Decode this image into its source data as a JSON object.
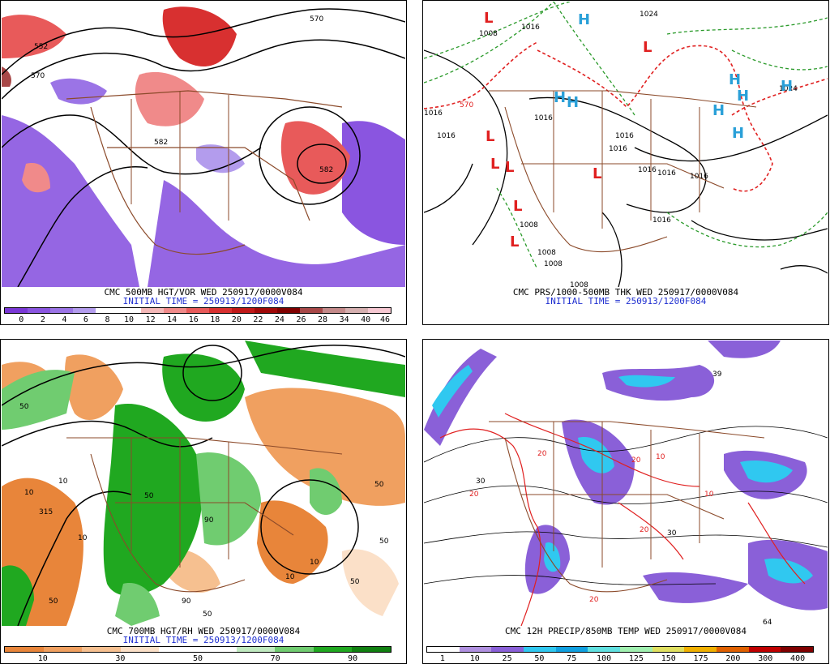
{
  "panels": [
    {
      "title": "CMC 500MB HGT/VOR WED 250917/0000V084",
      "initial_time": "INITIAL TIME = 250913/1200F084",
      "legend": {
        "colors": [
          "#7a38d6",
          "#8a55e0",
          "#9b74e6",
          "#b39ced",
          "#ffffff",
          "#ffffff",
          "#f4b8b8",
          "#f08a8a",
          "#e85a5a",
          "#d83030",
          "#c01818",
          "#a00808",
          "#800000",
          "#a84848",
          "#c48a8a",
          "#d6b0b0",
          "#f6c8d2"
        ],
        "labels": [
          "0",
          "2",
          "4",
          "6",
          "8",
          "10",
          "12",
          "14",
          "16",
          "18",
          "20",
          "22",
          "24",
          "26",
          "28",
          "34",
          "40",
          "46"
        ]
      },
      "contour_labels": [
        "570",
        "582",
        "570",
        "552",
        "582"
      ]
    },
    {
      "title": "CMC PRS/1000-500MB THK WED 250917/0000V084",
      "initial_time": "INITIAL TIME = 250913/1200F084",
      "pressure_labels": [
        "1008",
        "1016",
        "1024",
        "1016",
        "1016",
        "1016",
        "1016",
        "1016",
        "1016",
        "1016",
        "1016",
        "1016",
        "1008",
        "1008",
        "1008",
        "1008",
        "570",
        "1024"
      ],
      "highs": [
        "H",
        "H",
        "H",
        "H",
        "H",
        "H",
        "H",
        "H"
      ],
      "lows": [
        "L",
        "L",
        "L",
        "L",
        "L",
        "L",
        "L",
        "L"
      ]
    },
    {
      "title": "CMC 700MB HGT/RH WED 250917/0000V084",
      "initial_time": "INITIAL TIME = 250913/1200F084",
      "legend": {
        "colors": [
          "#e8853a",
          "#f0a060",
          "#f6c090",
          "#fbe0c8",
          "#ffffff",
          "#ffffff",
          "#c0eac0",
          "#70cc70",
          "#20a820",
          "#108010"
        ],
        "labels": [
          "10",
          "30",
          "50",
          "70",
          "90"
        ]
      },
      "contour_labels": [
        "315",
        "50",
        "10",
        "90",
        "50",
        "10",
        "10",
        "90",
        "50",
        "10",
        "50",
        "50",
        "50",
        "10",
        "50"
      ]
    },
    {
      "title": "CMC 12H PRECIP/850MB TEMP WED 250917/0000V084",
      "initial_time": "",
      "legend": {
        "colors": [
          "#ffffff",
          "#b090e0",
          "#8a60d8",
          "#30c8f0",
          "#10a0e0",
          "#60e0e0",
          "#a0f0b0",
          "#e0e060",
          "#f0b000",
          "#e06000",
          "#c00000",
          "#800000"
        ],
        "labels": [
          "1",
          "10",
          "25",
          "50",
          "75",
          "100",
          "125",
          "150",
          "175",
          "200",
          "300",
          "400"
        ]
      },
      "contour_labels": [
        "20",
        "20",
        "20",
        "20",
        "20",
        "10",
        "10",
        "39",
        "30",
        "30",
        "64"
      ]
    }
  ]
}
